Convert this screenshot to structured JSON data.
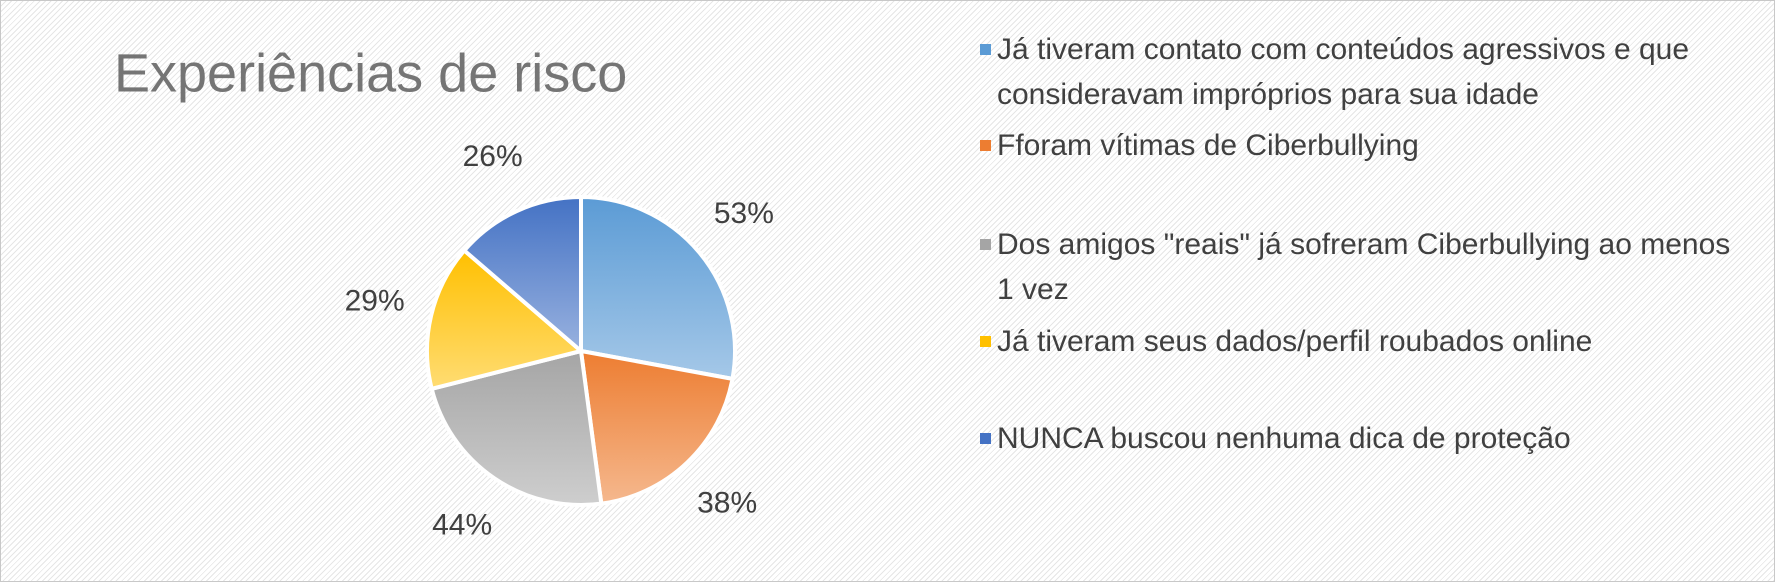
{
  "chart_data": {
    "type": "pie",
    "title": "Experiências de risco",
    "categories": [
      "Já tiveram contato com conteúdos agressivos e que consideravam impróprios para sua idade",
      "Fforam vítimas de Ciberbullying",
      "Dos amigos \"reais\" já sofreram Ciberbullying ao menos 1 vez",
      "Já tiveram seus dados/perfil roubados online",
      "NUNCA buscou nenhuma dica de proteção"
    ],
    "values": [
      53,
      38,
      44,
      29,
      26
    ],
    "value_labels": [
      "53%",
      "38%",
      "44%",
      "29%",
      "26%"
    ],
    "colors": [
      "#5b9bd5",
      "#ed7d31",
      "#a5a5a5",
      "#ffc000",
      "#4472c4"
    ],
    "legend": "right"
  }
}
